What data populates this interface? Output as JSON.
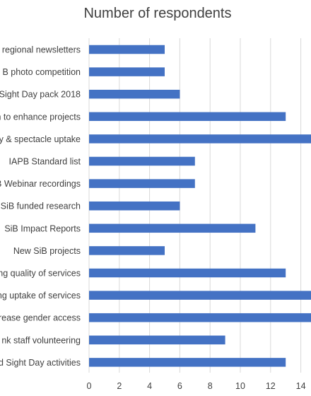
{
  "chart_data": {
    "type": "bar",
    "orientation": "horizontal",
    "title": "Number of respondents",
    "xlabel": "",
    "ylabel": "",
    "xlim": [
      0,
      14
    ],
    "x_ticks": [
      0,
      2,
      4,
      6,
      8,
      10,
      12,
      14
    ],
    "grid": "vertical",
    "bar_color": "#4472C4",
    "categories": [
      "regional newsletters",
      "B photo competition",
      "l Sight Day pack 2018",
      "n to enhance projects",
      "y & spectacle uptake",
      "IAPB Standard list",
      "B Webinar recordings",
      "SiB funded research",
      "SiB Impact Reports",
      "New SiB projects",
      "ing quality of services",
      "ing uptake of services",
      "crease gender access",
      "nk staff volunteering",
      "d Sight Day activities"
    ],
    "values": [
      5,
      5,
      6,
      13,
      15,
      7,
      7,
      6,
      11,
      5,
      13,
      15,
      15,
      9,
      13
    ]
  }
}
